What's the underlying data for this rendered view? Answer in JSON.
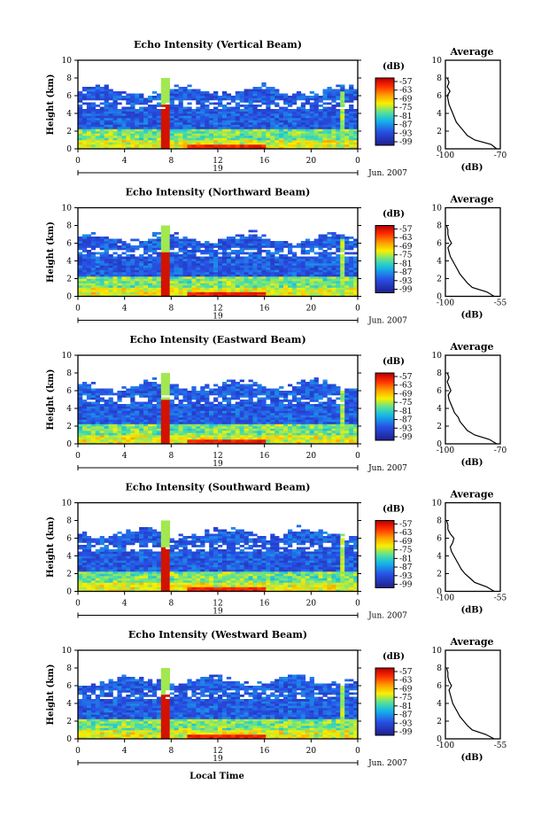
{
  "chart_data": [
    {
      "type": "heatmap",
      "title": "Echo Intensity (Vertical Beam)",
      "ylabel": "Height (km)",
      "xlim": [
        0,
        24
      ],
      "ylim": [
        0,
        10
      ],
      "x_ticks": [
        "0",
        "4",
        "8",
        "12",
        "16",
        "20",
        "0"
      ],
      "y_ticks": [
        "0",
        "2",
        "4",
        "6",
        "8",
        "10"
      ],
      "date_day": "19",
      "date_month": "Jun. 2007",
      "colorbar": {
        "label": "(dB)",
        "ticks": [
          "-57",
          "-63",
          "-69",
          "-75",
          "-81",
          "-87",
          "-93",
          "-99"
        ]
      },
      "profile": {
        "title": "Average",
        "xlabel": "(dB)",
        "x_ticks": [
          "-100",
          "-70"
        ],
        "xlim": [
          -100,
          -70
        ],
        "heights": [
          0,
          0.5,
          1,
          1.5,
          2,
          2.5,
          3,
          3.5,
          4,
          4.5,
          5,
          5.5,
          6,
          6.5,
          7,
          7.5,
          8
        ],
        "values": [
          -72,
          -75,
          -84,
          -88,
          -90,
          -92,
          -94,
          -95,
          -96,
          -97,
          -98,
          -98.5,
          -99,
          -97.5,
          -99,
          -98,
          -99
        ]
      }
    },
    {
      "type": "heatmap",
      "title": "Echo Intensity (Northward Beam)",
      "ylabel": "Height (km)",
      "xlim": [
        0,
        24
      ],
      "ylim": [
        0,
        10
      ],
      "x_ticks": [
        "0",
        "4",
        "8",
        "12",
        "16",
        "20",
        "0"
      ],
      "y_ticks": [
        "0",
        "2",
        "4",
        "6",
        "8",
        "10"
      ],
      "date_day": "19",
      "date_month": "Jun. 2007",
      "colorbar": {
        "label": "(dB)",
        "ticks": [
          "-57",
          "-63",
          "-69",
          "-75",
          "-81",
          "-87",
          "-93",
          "-99"
        ]
      },
      "profile": {
        "title": "Average",
        "xlabel": "(dB)",
        "x_ticks": [
          "-100",
          "-55"
        ],
        "xlim": [
          -100,
          -55
        ],
        "heights": [
          0,
          0.5,
          1,
          1.5,
          2,
          2.5,
          3,
          3.5,
          4,
          4.5,
          5,
          5.5,
          6,
          6.5,
          7,
          7.5,
          8
        ],
        "values": [
          -60,
          -66,
          -78,
          -82,
          -85,
          -88,
          -90,
          -92,
          -94,
          -96,
          -97,
          -98,
          -95,
          -97,
          -98,
          -98,
          -99
        ]
      }
    },
    {
      "type": "heatmap",
      "title": "Echo Intensity (Eastward Beam)",
      "ylabel": "Height (km)",
      "xlim": [
        0,
        24
      ],
      "ylim": [
        0,
        10
      ],
      "x_ticks": [
        "0",
        "4",
        "8",
        "12",
        "16",
        "20",
        "0"
      ],
      "y_ticks": [
        "0",
        "2",
        "4",
        "6",
        "8",
        "10"
      ],
      "date_day": "19",
      "date_month": "Jun. 2007",
      "colorbar": {
        "label": "(dB)",
        "ticks": [
          "-57",
          "-63",
          "-69",
          "-75",
          "-81",
          "-87",
          "-93",
          "-99"
        ]
      },
      "profile": {
        "title": "Average",
        "xlabel": "(dB)",
        "x_ticks": [
          "-100",
          "-70"
        ],
        "xlim": [
          -100,
          -70
        ],
        "heights": [
          0,
          0.5,
          1,
          1.5,
          2,
          2.5,
          3,
          3.5,
          4,
          4.5,
          5,
          5.5,
          6,
          6.5,
          7,
          7.5,
          8
        ],
        "values": [
          -72,
          -76,
          -84,
          -88,
          -90,
          -92,
          -93,
          -95,
          -96,
          -97,
          -98,
          -98.5,
          -97,
          -98,
          -99,
          -98,
          -99
        ]
      }
    },
    {
      "type": "heatmap",
      "title": "Echo Intensity (Southward Beam)",
      "ylabel": "Height (km)",
      "xlim": [
        0,
        24
      ],
      "ylim": [
        0,
        10
      ],
      "x_ticks": [
        "0",
        "4",
        "8",
        "12",
        "16",
        "20",
        "0"
      ],
      "y_ticks": [
        "0",
        "2",
        "4",
        "6",
        "8",
        "10"
      ],
      "date_day": "19",
      "date_month": "Jun. 2007",
      "colorbar": {
        "label": "(dB)",
        "ticks": [
          "-57",
          "-63",
          "-69",
          "-75",
          "-81",
          "-87",
          "-93",
          "-99"
        ]
      },
      "profile": {
        "title": "Average",
        "xlabel": "(dB)",
        "x_ticks": [
          "-100",
          "-55"
        ],
        "xlim": [
          -100,
          -55
        ],
        "heights": [
          0,
          0.5,
          1,
          1.5,
          2,
          2.5,
          3,
          3.5,
          4,
          4.5,
          5,
          5.5,
          6,
          6.5,
          7,
          7.5,
          8
        ],
        "values": [
          -60,
          -66,
          -76,
          -80,
          -84,
          -87,
          -89,
          -91,
          -93,
          -95,
          -96,
          -94,
          -93,
          -96,
          -98,
          -98,
          -99
        ]
      }
    },
    {
      "type": "heatmap",
      "title": "Echo Intensity (Westward Beam)",
      "ylabel": "Height (km)",
      "xlim": [
        0,
        24
      ],
      "ylim": [
        0,
        10
      ],
      "x_ticks": [
        "0",
        "4",
        "8",
        "12",
        "16",
        "20",
        "0"
      ],
      "y_ticks": [
        "0",
        "2",
        "4",
        "6",
        "8",
        "10"
      ],
      "date_day": "19",
      "date_month": "Jun. 2007",
      "colorbar": {
        "label": "(dB)",
        "ticks": [
          "-57",
          "-63",
          "-69",
          "-75",
          "-81",
          "-87",
          "-93",
          "-99"
        ]
      },
      "profile": {
        "title": "Average",
        "xlabel": "(dB)",
        "x_ticks": [
          "-100",
          "-55"
        ],
        "xlim": [
          -100,
          -55
        ],
        "heights": [
          0,
          0.5,
          1,
          1.5,
          2,
          2.5,
          3,
          3.5,
          4,
          4.5,
          5,
          5.5,
          6,
          6.5,
          7,
          7.5,
          8
        ],
        "values": [
          -60,
          -67,
          -78,
          -82,
          -85,
          -88,
          -90,
          -92,
          -94,
          -95,
          -96,
          -97,
          -95,
          -97,
          -98,
          -98,
          -99
        ]
      }
    }
  ],
  "xlabel": "Local Time"
}
